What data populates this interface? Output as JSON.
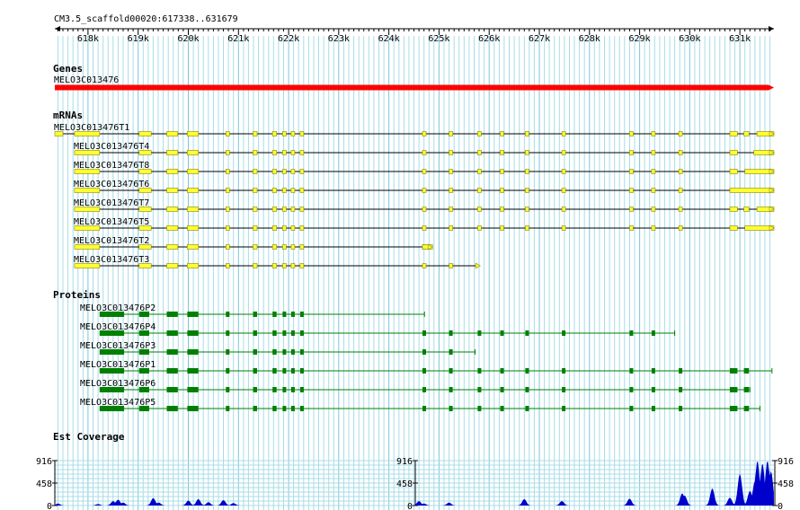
{
  "scaffold_label": "CM3.5_scaffold00020:617338..631679",
  "axis": {
    "start": 617338,
    "end": 631679,
    "tick_labels": [
      "618k",
      "619k",
      "620k",
      "621k",
      "622k",
      "623k",
      "624k",
      "625k",
      "626k",
      "627k",
      "628k",
      "629k",
      "630k",
      "631k"
    ]
  },
  "sections": {
    "genes": "Genes",
    "mrnas": "mRNAs",
    "proteins": "Proteins",
    "est": "Est Coverage"
  },
  "colors": {
    "gene": "#ff0000",
    "mrna_fill": "#ffff33",
    "mrna_line": "#888800",
    "protein": "#008000",
    "coverage": "#0000cc",
    "grid": "#a8dce8",
    "axis": "#000000"
  },
  "gene": {
    "name": "MELO3C013476",
    "start": 617338,
    "end": 631679,
    "strand": "+"
  },
  "mrnas": [
    {
      "name": "MELO3C013476T1",
      "start": 617338,
      "end": 631679
    },
    {
      "name": "MELO3C013476T4",
      "start": 617730,
      "end": 631679
    },
    {
      "name": "MELO3C013476T8",
      "start": 617730,
      "end": 631679
    },
    {
      "name": "MELO3C013476T6",
      "start": 617730,
      "end": 631679
    },
    {
      "name": "MELO3C013476T7",
      "start": 617730,
      "end": 631679
    },
    {
      "name": "MELO3C013476T5",
      "start": 617730,
      "end": 631679
    },
    {
      "name": "MELO3C013476T2",
      "start": 617730,
      "end": 624870
    },
    {
      "name": "MELO3C013476T3",
      "start": 617730,
      "end": 625820
    }
  ],
  "proteins": [
    {
      "name": "MELO3C013476P2",
      "start": 618230,
      "end": 624710
    },
    {
      "name": "MELO3C013476P4",
      "start": 618230,
      "end": 629700
    },
    {
      "name": "MELO3C013476P3",
      "start": 618230,
      "end": 625720
    },
    {
      "name": "MELO3C013476P1",
      "start": 618230,
      "end": 631640
    },
    {
      "name": "MELO3C013476P6",
      "start": 618230,
      "end": 631200
    },
    {
      "name": "MELO3C013476P5",
      "start": 618230,
      "end": 631400
    }
  ],
  "coverage": {
    "max": 916,
    "ticks": [
      "916",
      "458",
      "0"
    ]
  }
}
